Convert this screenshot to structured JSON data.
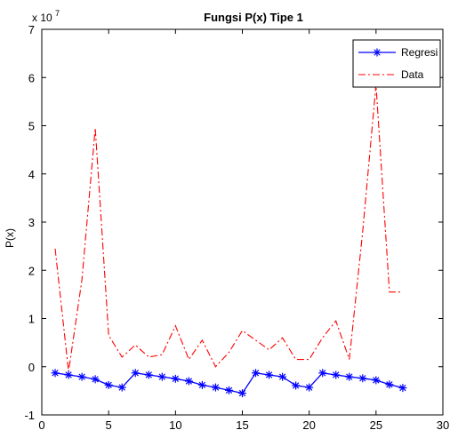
{
  "chart_data": {
    "type": "line",
    "title": "Fungsi P(x) Tipe 1",
    "xlabel": "",
    "ylabel": "P(x)",
    "exponent_label": "x 10",
    "exponent_power": "7",
    "xlim": [
      0,
      30
    ],
    "ylim": [
      -1,
      7
    ],
    "x_ticks": [
      0,
      5,
      10,
      15,
      20,
      25,
      30
    ],
    "y_ticks": [
      -1,
      0,
      1,
      2,
      3,
      4,
      5,
      6,
      7
    ],
    "grid": false,
    "legend_position": "top-right",
    "x": [
      1,
      2,
      3,
      4,
      5,
      6,
      7,
      8,
      9,
      10,
      11,
      12,
      13,
      14,
      15,
      16,
      17,
      18,
      19,
      20,
      21,
      22,
      23,
      24,
      25,
      26,
      27
    ],
    "series": [
      {
        "name": "Regresi",
        "color": "#0000ff",
        "style": "solid-star",
        "values": [
          -0.13,
          -0.17,
          -0.21,
          -0.26,
          -0.38,
          -0.43,
          -0.13,
          -0.17,
          -0.21,
          -0.25,
          -0.3,
          -0.38,
          -0.43,
          -0.49,
          -0.55,
          -0.13,
          -0.17,
          -0.21,
          -0.39,
          -0.43,
          -0.13,
          -0.17,
          -0.21,
          -0.24,
          -0.28,
          -0.37,
          -0.44
        ]
      },
      {
        "name": "Data",
        "color": "#ff0000",
        "style": "dash-dot",
        "values": [
          2.45,
          -0.1,
          1.8,
          4.95,
          0.65,
          0.2,
          0.45,
          0.2,
          0.25,
          0.85,
          0.15,
          0.55,
          0.0,
          0.3,
          0.75,
          0.55,
          0.35,
          0.6,
          0.15,
          0.15,
          0.6,
          0.95,
          0.15,
          2.8,
          5.85,
          1.55,
          1.55
        ]
      }
    ]
  }
}
